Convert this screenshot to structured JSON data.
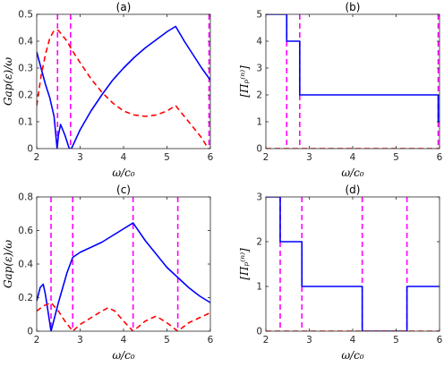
{
  "colors": {
    "blue": "#0000ff",
    "red": "#ff0000",
    "magenta": "#ff00ff",
    "axis": "#262626"
  },
  "chart_data": [
    {
      "panel": "(a)",
      "type": "line",
      "title": "(a)",
      "xlabel": "ω/c₀",
      "ylabel": "Gap(ε)/ω",
      "xlim": [
        2,
        6
      ],
      "ylim": [
        0,
        0.5
      ],
      "xticks": [
        2,
        3,
        4,
        5,
        6
      ],
      "yticks": [
        0,
        0.1,
        0.2,
        0.3,
        0.4,
        0.5
      ],
      "xtick_labels": [
        "2",
        "3",
        "4",
        "5",
        "6"
      ],
      "ytick_labels": [
        "0",
        "0.1",
        "0.2",
        "0.3",
        "0.4",
        "0.5"
      ],
      "vlines": [
        2.48,
        2.78,
        5.97
      ],
      "series": [
        {
          "style": "solid",
          "color": "#0000ff",
          "x": [
            2.0,
            2.1,
            2.2,
            2.3,
            2.4,
            2.47,
            2.5,
            2.55,
            2.6,
            2.65,
            2.7,
            2.75,
            2.8,
            3.0,
            3.25,
            3.5,
            3.75,
            4.0,
            4.25,
            4.5,
            4.75,
            5.0,
            5.2,
            5.4,
            5.6,
            5.8,
            6.0
          ],
          "y": [
            0.36,
            0.3,
            0.24,
            0.19,
            0.12,
            0.0,
            0.05,
            0.09,
            0.07,
            0.05,
            0.025,
            0.0,
            0.0,
            0.07,
            0.14,
            0.2,
            0.255,
            0.3,
            0.34,
            0.375,
            0.405,
            0.435,
            0.455,
            0.4,
            0.35,
            0.3,
            0.255
          ]
        },
        {
          "style": "dashed",
          "color": "#ff0000",
          "x": [
            2.0,
            2.1,
            2.2,
            2.3,
            2.4,
            2.5,
            2.6,
            2.7,
            2.8,
            3.0,
            3.25,
            3.5,
            3.75,
            4.0,
            4.25,
            4.5,
            4.75,
            5.0,
            5.2,
            5.4,
            5.6,
            5.8,
            5.95,
            6.0
          ],
          "y": [
            0.16,
            0.27,
            0.35,
            0.41,
            0.44,
            0.44,
            0.42,
            0.4,
            0.37,
            0.32,
            0.26,
            0.21,
            0.17,
            0.14,
            0.125,
            0.12,
            0.125,
            0.14,
            0.16,
            0.12,
            0.08,
            0.04,
            0.0,
            0.0
          ]
        }
      ]
    },
    {
      "panel": "(b)",
      "type": "line",
      "title": "(b)",
      "xlabel": "ω/c₀",
      "ylabel": "[Πₚ⁽ⁿ⁾]",
      "xlim": [
        2,
        6
      ],
      "ylim": [
        0,
        5
      ],
      "xticks": [
        2,
        3,
        4,
        5,
        6
      ],
      "yticks": [
        0,
        1,
        2,
        3,
        4,
        5
      ],
      "xtick_labels": [
        "2",
        "3",
        "4",
        "5",
        "6"
      ],
      "ytick_labels": [
        "0",
        "1",
        "2",
        "3",
        "4",
        "5"
      ],
      "vlines": [
        2.48,
        2.78,
        5.97
      ],
      "series": [
        {
          "style": "solid",
          "color": "#0000ff",
          "x": [
            2.0,
            2.48,
            2.48,
            2.78,
            2.78,
            5.97,
            5.97,
            6.0
          ],
          "y": [
            5,
            5,
            4,
            4,
            2,
            2,
            1,
            1
          ]
        },
        {
          "style": "dashed",
          "color": "#ff0000",
          "x": [
            2.0,
            6.0
          ],
          "y": [
            0,
            0
          ]
        }
      ]
    },
    {
      "panel": "(c)",
      "type": "line",
      "title": "(c)",
      "xlabel": "ω/c₀",
      "ylabel": "Gap(ε)/ω",
      "xlim": [
        2,
        6
      ],
      "ylim": [
        0,
        0.8
      ],
      "xticks": [
        2,
        3,
        4,
        5,
        6
      ],
      "yticks": [
        0,
        0.2,
        0.4,
        0.6,
        0.8
      ],
      "xtick_labels": [
        "2",
        "3",
        "4",
        "5",
        "6"
      ],
      "ytick_labels": [
        "0",
        "0.2",
        "0.4",
        "0.6",
        "0.8"
      ],
      "vlines": [
        2.33,
        2.83,
        4.22,
        5.25
      ],
      "series": [
        {
          "style": "solid",
          "color": "#0000ff",
          "x": [
            2.0,
            2.08,
            2.15,
            2.2,
            2.33,
            2.5,
            2.7,
            2.83,
            3.0,
            3.25,
            3.5,
            3.75,
            4.0,
            4.22,
            4.5,
            4.75,
            5.0,
            5.25,
            5.5,
            5.75,
            6.0
          ],
          "y": [
            0.18,
            0.26,
            0.28,
            0.22,
            0.0,
            0.17,
            0.35,
            0.44,
            0.47,
            0.5,
            0.53,
            0.57,
            0.61,
            0.645,
            0.54,
            0.46,
            0.38,
            0.32,
            0.26,
            0.21,
            0.17
          ]
        },
        {
          "style": "dashed",
          "color": "#ff0000",
          "x": [
            2.0,
            2.15,
            2.33,
            2.5,
            2.65,
            2.83,
            3.0,
            3.25,
            3.5,
            3.65,
            3.8,
            4.0,
            4.22,
            4.5,
            4.75,
            5.0,
            5.25,
            5.5,
            5.75,
            6.0
          ],
          "y": [
            0.12,
            0.15,
            0.17,
            0.12,
            0.06,
            0.0,
            0.04,
            0.08,
            0.12,
            0.14,
            0.12,
            0.06,
            0.0,
            0.06,
            0.09,
            0.05,
            0.0,
            0.05,
            0.08,
            0.11
          ]
        }
      ]
    },
    {
      "panel": "(d)",
      "type": "line",
      "title": "(d)",
      "xlabel": "ω/c₀",
      "ylabel": "[Πₚ⁽ⁿ⁾]",
      "xlim": [
        2,
        6
      ],
      "ylim": [
        0,
        3
      ],
      "xticks": [
        2,
        3,
        4,
        5,
        6
      ],
      "yticks": [
        0,
        1,
        2,
        3
      ],
      "xtick_labels": [
        "2",
        "3",
        "4",
        "5",
        "6"
      ],
      "ytick_labels": [
        "0",
        "1",
        "2",
        "3"
      ],
      "vlines": [
        2.33,
        2.83,
        4.22,
        5.25
      ],
      "series": [
        {
          "style": "solid",
          "color": "#0000ff",
          "x": [
            2.0,
            2.33,
            2.33,
            2.83,
            2.83,
            4.22,
            4.22,
            5.25,
            5.25,
            6.0
          ],
          "y": [
            3,
            3,
            2,
            2,
            1,
            1,
            0,
            0,
            1,
            1
          ]
        },
        {
          "style": "dashed",
          "color": "#ff0000",
          "x": [
            2.0,
            6.0
          ],
          "y": [
            0,
            0
          ]
        }
      ]
    }
  ]
}
